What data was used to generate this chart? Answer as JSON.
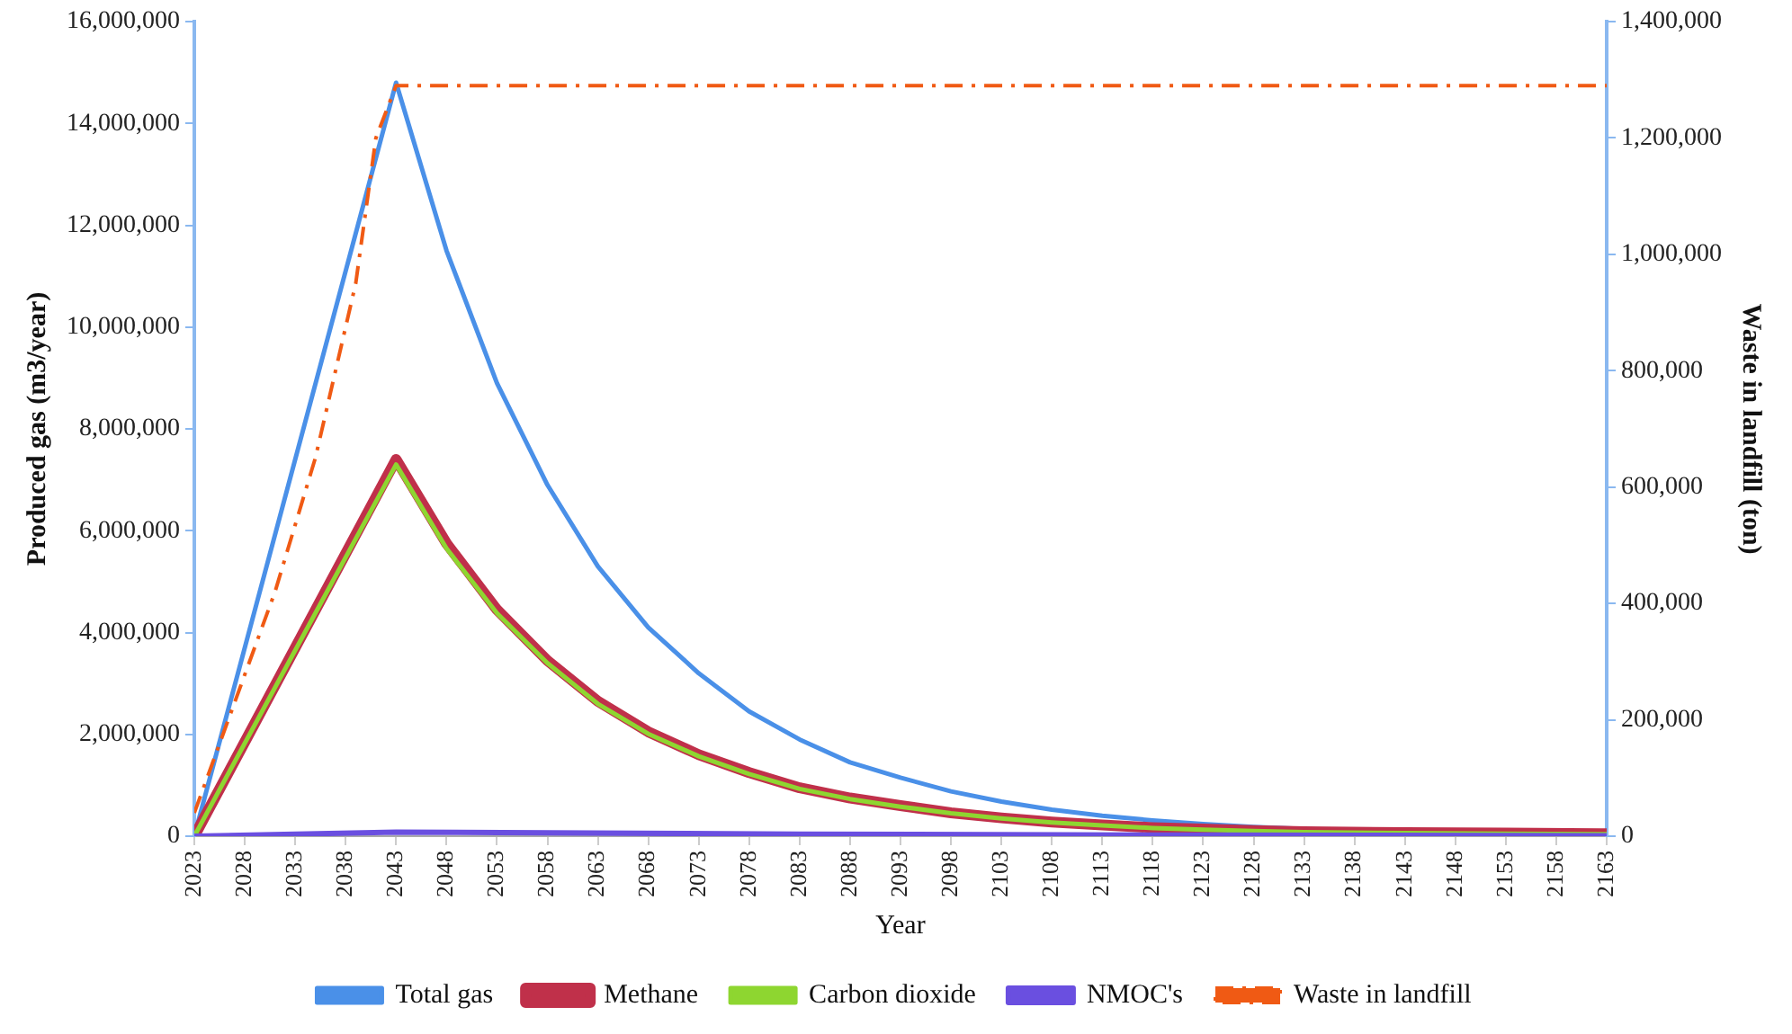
{
  "chart_data": {
    "type": "line",
    "xlabel": "Year",
    "ylabel": "Produced gas (m3/year)",
    "y2label": "Waste in landfill (ton)",
    "xlim": [
      2023,
      2163
    ],
    "xticks": [
      2023,
      2028,
      2033,
      2038,
      2043,
      2048,
      2053,
      2058,
      2063,
      2068,
      2073,
      2078,
      2083,
      2088,
      2093,
      2098,
      2103,
      2108,
      2113,
      2118,
      2123,
      2128,
      2133,
      2138,
      2143,
      2148,
      2153,
      2158,
      2163
    ],
    "ylim": [
      0,
      16000000
    ],
    "yticks": [
      {
        "value": 0,
        "label": "0"
      },
      {
        "value": 2000000,
        "label": "2,000,000"
      },
      {
        "value": 4000000,
        "label": "4,000,000"
      },
      {
        "value": 6000000,
        "label": "6,000,000"
      },
      {
        "value": 8000000,
        "label": "8,000,000"
      },
      {
        "value": 10000000,
        "label": "10,000,000"
      },
      {
        "value": 12000000,
        "label": "12,000,000"
      },
      {
        "value": 14000000,
        "label": "14,000,000"
      },
      {
        "value": 16000000,
        "label": "16,000,000"
      }
    ],
    "y2lim": [
      0,
      1400000
    ],
    "y2ticks": [
      {
        "value": 0,
        "label": "0"
      },
      {
        "value": 200000,
        "label": "200,000"
      },
      {
        "value": 400000,
        "label": "400,000"
      },
      {
        "value": 600000,
        "label": "600,000"
      },
      {
        "value": 800000,
        "label": "800,000"
      },
      {
        "value": 1000000,
        "label": "1,000,000"
      },
      {
        "value": 1200000,
        "label": "1,200,000"
      },
      {
        "value": 1400000,
        "label": "1,400,000"
      }
    ],
    "grid": false,
    "legend": "bottom",
    "marker": "none",
    "series": [
      {
        "name": "Total gas",
        "color": "#4a90e8",
        "line_style": "solid",
        "x": [
          2023,
          2043,
          2048,
          2053,
          2058,
          2063,
          2068,
          2073,
          2078,
          2083,
          2088,
          2093,
          2098,
          2103,
          2108,
          2113,
          2118,
          2123,
          2128,
          2133,
          2143,
          2153,
          2163
        ],
        "values": [
          0,
          14800000,
          11500000,
          8900000,
          6900000,
          5300000,
          4100000,
          3200000,
          2450000,
          1900000,
          1450000,
          1150000,
          880000,
          680000,
          520000,
          400000,
          310000,
          240000,
          180000,
          140000,
          80000,
          50000,
          30000
        ]
      },
      {
        "name": "Methane",
        "color": "#c0304a",
        "line_style": "solid",
        "x": [
          2023,
          2043,
          2048,
          2053,
          2058,
          2063,
          2068,
          2073,
          2078,
          2083,
          2088,
          2093,
          2098,
          2103,
          2108,
          2113,
          2118,
          2123,
          2128,
          2133,
          2143,
          2153,
          2163
        ],
        "values": [
          0,
          7400000,
          5750000,
          4450000,
          3450000,
          2650000,
          2050000,
          1600000,
          1250000,
          950000,
          750000,
          600000,
          460000,
          360000,
          280000,
          220000,
          170000,
          140000,
          110000,
          90000,
          70000,
          60000,
          50000
        ]
      },
      {
        "name": "Carbon dioxide",
        "color": "#8ed630",
        "line_style": "solid",
        "x": [
          2023,
          2043,
          2048,
          2053,
          2058,
          2063,
          2068,
          2073,
          2078,
          2083,
          2088,
          2093,
          2098,
          2103,
          2108,
          2113,
          2118,
          2123,
          2128,
          2133,
          2143,
          2153,
          2163
        ],
        "values": [
          0,
          7300000,
          5650000,
          4380000,
          3400000,
          2600000,
          2010000,
          1570000,
          1220000,
          930000,
          730000,
          580000,
          450000,
          350000,
          270000,
          210000,
          160000,
          130000,
          100000,
          80000,
          60000,
          50000,
          40000
        ]
      },
      {
        "name": "NMOC's",
        "color": "#6a4fe0",
        "line_style": "solid",
        "x": [
          2023,
          2043,
          2083,
          2123,
          2163
        ],
        "values": [
          0,
          80000,
          40000,
          20000,
          10000
        ]
      },
      {
        "name": "Waste in landfill",
        "color": "#f05a14",
        "line_style": "dashdot",
        "axis": "y2",
        "x": [
          2023,
          2027,
          2031,
          2035,
          2039,
          2041,
          2043,
          2163
        ],
        "values": [
          40000,
          230000,
          420000,
          650000,
          950000,
          1200000,
          1290000,
          1290000
        ]
      }
    ]
  }
}
